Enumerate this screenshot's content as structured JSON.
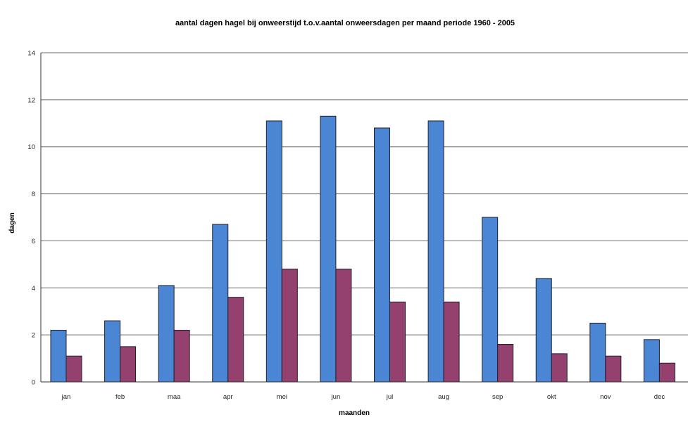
{
  "chart_data": {
    "type": "bar",
    "title": "aantal dagen hagel bij onweerstijd t.o.v.aantal onweersdagen per maand periode 1960 - 2005",
    "xlabel": "maanden",
    "ylabel": "dagen",
    "ylim": [
      0,
      14
    ],
    "yticks": [
      "0",
      "2",
      "4",
      "6",
      "8",
      "10",
      "12",
      "14"
    ],
    "grid": true,
    "legend": "none",
    "categories": [
      "jan",
      "feb",
      "maa",
      "apr",
      "mei",
      "jun",
      "jul",
      "aug",
      "sep",
      "okt",
      "nov",
      "dec"
    ],
    "series": [
      {
        "values": [
          2.2,
          2.6,
          4.1,
          6.7,
          11.1,
          11.3,
          10.8,
          11.1,
          7.0,
          4.4,
          2.5,
          1.8
        ],
        "color": "#4a86d4"
      },
      {
        "values": [
          1.1,
          1.5,
          2.2,
          3.6,
          4.8,
          4.8,
          3.4,
          3.4,
          1.6,
          1.2,
          1.1,
          0.8
        ],
        "color": "#95416f"
      }
    ]
  }
}
